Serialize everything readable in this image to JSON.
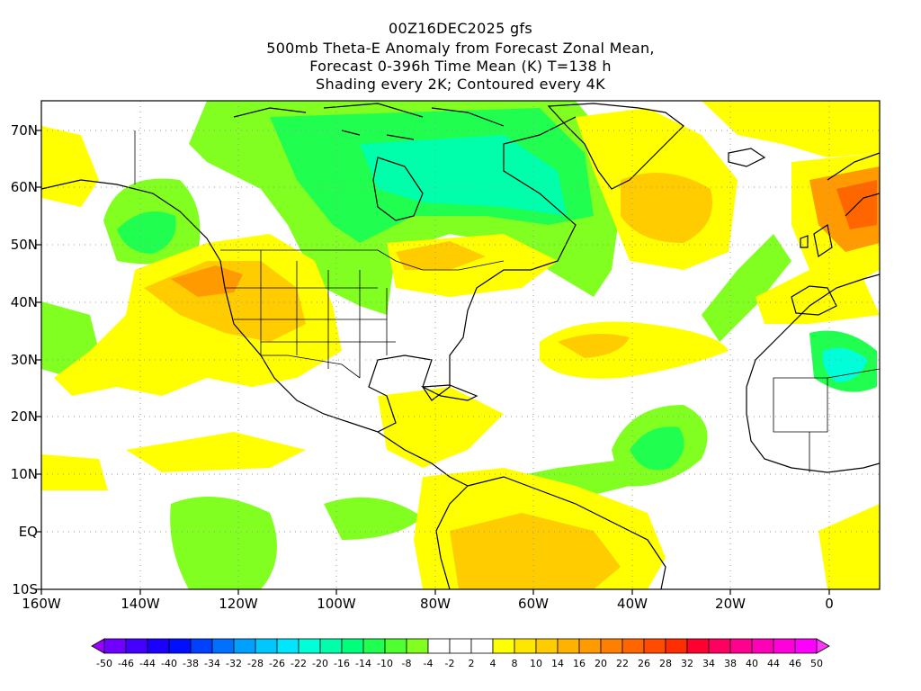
{
  "header": {
    "line1": "00Z16DEC2025 gfs",
    "line2": "500mb Theta-E Anomaly from Forecast Zonal Mean,",
    "line3": "Forecast 0-396h Time Mean (K) T=138 h",
    "line4": "Shading every 2K; Contoured every 4K"
  },
  "axes": {
    "lon_labels": [
      "160W",
      "140W",
      "120W",
      "100W",
      "80W",
      "60W",
      "40W",
      "20W",
      "0"
    ],
    "lat_labels": [
      "70N",
      "60N",
      "50N",
      "40N",
      "30N",
      "20N",
      "10N",
      "EQ",
      "10S"
    ],
    "lon_range": [
      -160,
      10
    ],
    "lat_range": [
      -10,
      75
    ],
    "grid": "dotted"
  },
  "colorbar": {
    "labels": [
      "-50",
      "-46",
      "-44",
      "-40",
      "-38",
      "-34",
      "-32",
      "-28",
      "-26",
      "-22",
      "-20",
      "-16",
      "-14",
      "-10",
      "-8",
      "-4",
      "-2",
      "2",
      "4",
      "8",
      "10",
      "14",
      "16",
      "20",
      "22",
      "26",
      "28",
      "32",
      "34",
      "38",
      "40",
      "44",
      "46",
      "50"
    ],
    "colors": [
      "#9900ff",
      "#6f00ff",
      "#4400ff",
      "#1a00ff",
      "#0010ff",
      "#0040ff",
      "#0070ff",
      "#00a0ff",
      "#00c8ff",
      "#00e6ff",
      "#00ffd8",
      "#00ffaa",
      "#00ff7a",
      "#20ff50",
      "#50ff30",
      "#80ff20",
      "#ffffff",
      "#ffffff",
      "#ffffff",
      "#ffff00",
      "#ffe600",
      "#ffcc00",
      "#ffb300",
      "#ff9a00",
      "#ff8000",
      "#ff6600",
      "#ff4c00",
      "#ff2e00",
      "#ff0030",
      "#ff0060",
      "#ff0090",
      "#ff00b8",
      "#ff00dd",
      "#ff00ff",
      "#ff33ff"
    ]
  },
  "map_colors": {
    "cool1": "#80ff20",
    "cool2": "#20ff50",
    "cool3": "#00ffaa",
    "cool4": "#00ffd8",
    "warm1": "#ffff00",
    "warm2": "#ffcc00",
    "warm3": "#ff9a00",
    "warm4": "#ff6600"
  }
}
